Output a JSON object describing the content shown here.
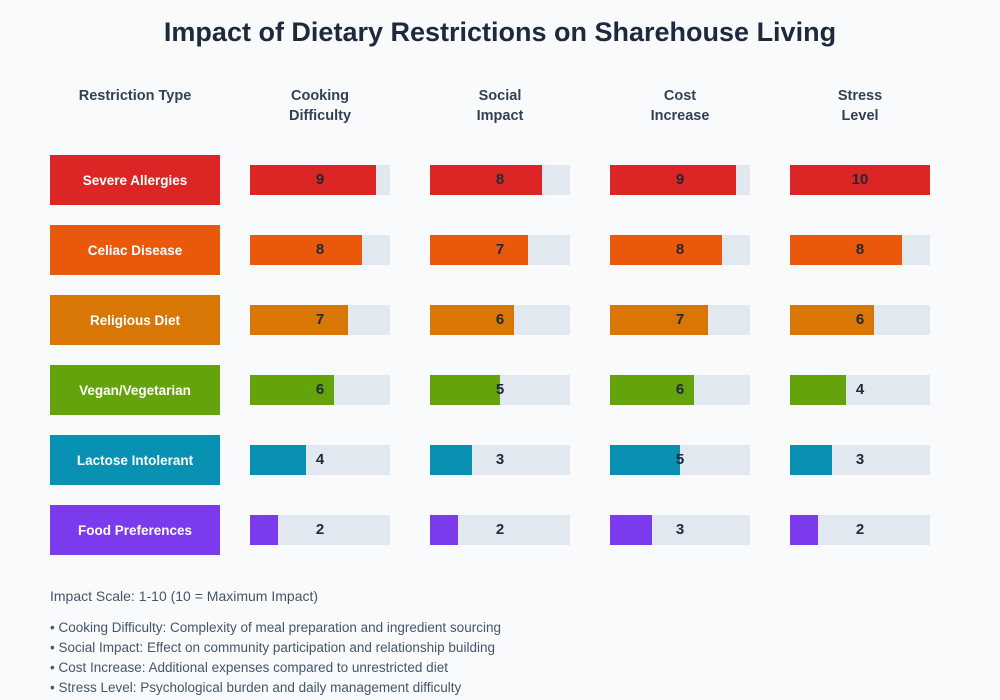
{
  "title": "Impact of Dietary Restrictions on Sharehouse Living",
  "columns": {
    "restriction": "Restriction Type",
    "metrics": [
      {
        "line1": "Cooking",
        "line2": "Difficulty"
      },
      {
        "line1": "Social",
        "line2": "Impact"
      },
      {
        "line1": "Cost",
        "line2": "Increase"
      },
      {
        "line1": "Stress",
        "line2": "Level"
      }
    ]
  },
  "rows": [
    {
      "label": "Severe Allergies",
      "color": "#dc2626",
      "values": [
        9,
        8,
        9,
        10
      ]
    },
    {
      "label": "Celiac Disease",
      "color": "#ea580c",
      "values": [
        8,
        7,
        8,
        8
      ]
    },
    {
      "label": "Religious Diet",
      "color": "#d97706",
      "values": [
        7,
        6,
        7,
        6
      ]
    },
    {
      "label": "Vegan/Vegetarian",
      "color": "#65a30d",
      "values": [
        6,
        5,
        6,
        4
      ]
    },
    {
      "label": "Lactose Intolerant",
      "color": "#0891b2",
      "values": [
        4,
        3,
        5,
        3
      ]
    },
    {
      "label": "Food Preferences",
      "color": "#7c3aed",
      "values": [
        2,
        2,
        3,
        2
      ]
    }
  ],
  "footer": {
    "scale_note": "Impact Scale: 1-10 (10 = Maximum Impact)",
    "bullets": [
      "• Cooking Difficulty: Complexity of meal preparation and ingredient sourcing",
      "• Social Impact: Effect on community participation and relationship building",
      "• Cost Increase: Additional expenses compared to unrestricted diet",
      "• Stress Level: Psychological burden and daily management difficulty"
    ]
  },
  "colors": {
    "background": "#f8fafc",
    "track": "#e2e8f0",
    "title_text": "#1e293b",
    "header_text": "#334155",
    "value_text": "#1e293b",
    "footer_text": "#475569"
  },
  "chart_data": {
    "type": "bar",
    "title": "Impact of Dietary Restrictions on Sharehouse Living",
    "orientation": "horizontal",
    "categories": [
      "Severe Allergies",
      "Celiac Disease",
      "Religious Diet",
      "Vegan/Vegetarian",
      "Lactose Intolerant",
      "Food Preferences"
    ],
    "series": [
      {
        "name": "Cooking Difficulty",
        "values": [
          9,
          8,
          7,
          6,
          4,
          2
        ]
      },
      {
        "name": "Social Impact",
        "values": [
          8,
          7,
          6,
          5,
          3,
          2
        ]
      },
      {
        "name": "Cost Increase",
        "values": [
          9,
          8,
          7,
          6,
          5,
          3
        ]
      },
      {
        "name": "Stress Level",
        "values": [
          10,
          8,
          6,
          4,
          3,
          2
        ]
      }
    ],
    "series_descriptions": [
      "Cooking Difficulty: Complexity of meal preparation and ingredient sourcing",
      "Social Impact: Effect on community participation and relationship building",
      "Cost Increase: Additional expenses compared to unrestricted diet",
      "Stress Level: Psychological burden and daily management difficulty"
    ],
    "category_colors": [
      "#dc2626",
      "#ea580c",
      "#d97706",
      "#65a30d",
      "#0891b2",
      "#7c3aed"
    ],
    "value_range": [
      0,
      10
    ],
    "scale_note": "Impact Scale: 1-10 (10 = Maximum Impact)",
    "grid": false,
    "legend_position": "none",
    "data_labels": true
  }
}
